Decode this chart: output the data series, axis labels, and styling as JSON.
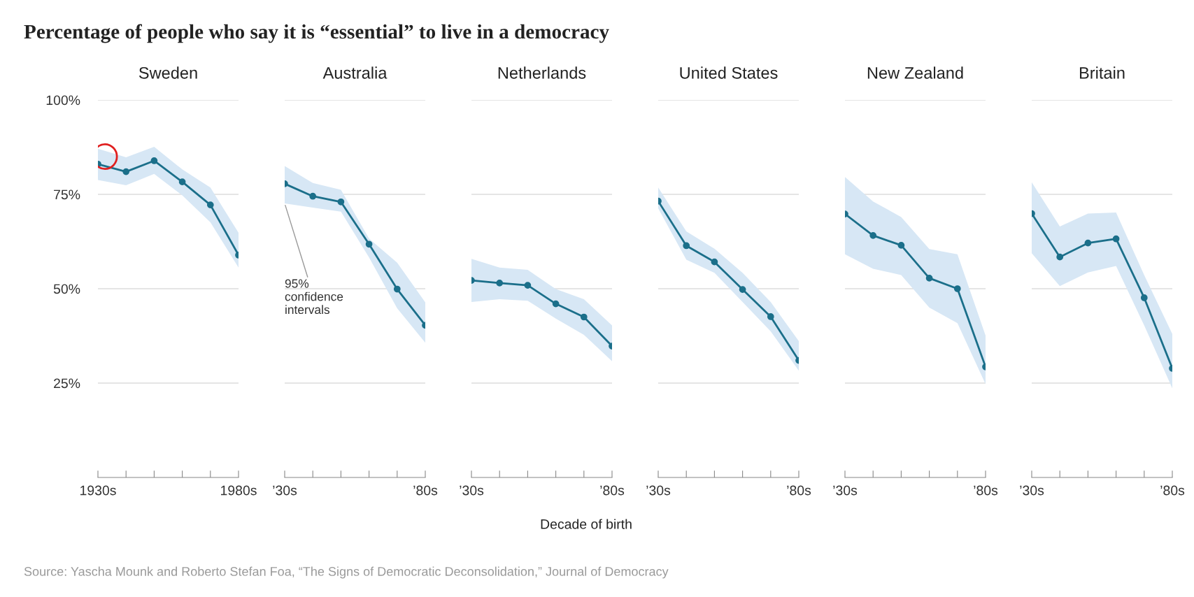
{
  "chart_data": [
    {
      "type": "line",
      "title": "Sweden",
      "categories": [
        "1930s",
        null,
        null,
        null,
        null,
        "1980s"
      ],
      "ylim": [
        0,
        100
      ],
      "yticks": [
        {
          "value": 25,
          "label": "25%"
        },
        {
          "value": 50,
          "label": "50%"
        },
        {
          "value": 75,
          "label": "75%"
        },
        {
          "value": 100,
          "label": "100%"
        }
      ],
      "grid": "y",
      "marker": "circle",
      "series": [
        {
          "color": "#1b6f8a",
          "values": [
            83.0,
            81.0,
            83.9,
            78.3,
            72.2,
            58.9
          ],
          "lower": [
            78.8,
            77.4,
            80.4,
            74.7,
            67.6,
            55.6
          ],
          "upper": [
            87.1,
            84.8,
            87.6,
            81.6,
            76.8,
            64.8
          ]
        }
      ],
      "annotations": [
        "Percentage of people who say it is “essential” to live in a democracy",
        "Source: Yascha Mounk and Roberto Stefan Foa, “The Signs of Democratic Deconsolidation,” Journal of Democracy"
      ]
    },
    {
      "type": "line",
      "title": "Australia",
      "categories": [
        "’30s",
        null,
        null,
        null,
        null,
        "’80s"
      ],
      "ylim": [
        0,
        100
      ],
      "yticks": [
        25,
        50,
        75,
        100
      ],
      "grid": "y",
      "marker": "circle",
      "tick_labels": "x",
      "series": [
        {
          "color": "#1b6f8a",
          "values": [
            77.8,
            74.5,
            73.0,
            61.8,
            49.9,
            40.3
          ],
          "lower": [
            72.6,
            71.5,
            70.4,
            58.3,
            44.8,
            35.7
          ],
          "upper": [
            82.5,
            78.0,
            76.2,
            63.3,
            56.9,
            46.4
          ]
        }
      ],
      "annotations": [
        {
          "text": "95%\nconfidence\nintervals",
          "x": "’30s",
          "y": 72.6
        }
      ]
    },
    {
      "type": "line",
      "title": "Netherlands",
      "categories": [
        "’30s",
        null,
        null,
        null,
        null,
        "’80s"
      ],
      "ylim": [
        0,
        100
      ],
      "yticks": [
        25,
        50,
        75,
        100
      ],
      "grid": "y",
      "marker": "circle",
      "tick_labels": "x",
      "series": [
        {
          "color": "#1b6f8a",
          "values": [
            52.2,
            51.5,
            50.9,
            46.0,
            42.5,
            34.8
          ],
          "lower": [
            46.5,
            47.2,
            46.8,
            42.1,
            37.8,
            30.8
          ],
          "upper": [
            57.9,
            55.6,
            55.0,
            49.9,
            47.2,
            40.3
          ]
        }
      ]
    },
    {
      "type": "line",
      "title": "United States",
      "categories": [
        "’30s",
        null,
        null,
        null,
        null,
        "’80s"
      ],
      "ylim": [
        0,
        100
      ],
      "yticks": [
        25,
        50,
        75,
        100
      ],
      "grid": "y",
      "marker": "circle",
      "tick_labels": "x",
      "xlabel": "Decade of birth",
      "series": [
        {
          "color": "#1b6f8a",
          "values": [
            73.2,
            61.4,
            57.1,
            49.8,
            42.6,
            31.0
          ],
          "lower": [
            71.3,
            57.7,
            54.2,
            46.5,
            38.7,
            28.3
          ],
          "upper": [
            76.8,
            65.2,
            60.6,
            54.2,
            46.5,
            36.1
          ]
        }
      ]
    },
    {
      "type": "line",
      "title": "New Zealand",
      "categories": [
        "’30s",
        null,
        null,
        null,
        null,
        "’80s"
      ],
      "ylim": [
        0,
        100
      ],
      "yticks": [
        25,
        50,
        75,
        100
      ],
      "grid": "y",
      "marker": "circle",
      "tick_labels": "x",
      "series": [
        {
          "color": "#1b6f8a",
          "values": [
            69.8,
            64.1,
            61.5,
            52.8,
            50.0,
            29.3
          ],
          "lower": [
            59.1,
            55.3,
            53.6,
            45.0,
            40.9,
            24.7
          ],
          "upper": [
            79.6,
            73.1,
            69.0,
            60.5,
            59.1,
            37.6
          ]
        }
      ]
    },
    {
      "type": "line",
      "title": "Britain",
      "categories": [
        "’30s",
        null,
        null,
        null,
        null,
        "’80s"
      ],
      "ylim": [
        0,
        100
      ],
      "yticks": [
        25,
        50,
        75,
        100
      ],
      "grid": "y",
      "marker": "circle",
      "tick_labels": "x",
      "series": [
        {
          "color": "#1b6f8a",
          "values": [
            69.9,
            58.4,
            62.1,
            63.2,
            47.6,
            28.9
          ],
          "lower": [
            59.4,
            50.7,
            54.3,
            56.0,
            40.3,
            23.6
          ],
          "upper": [
            78.2,
            66.5,
            69.9,
            70.2,
            53.6,
            38.0
          ]
        }
      ]
    }
  ]
}
